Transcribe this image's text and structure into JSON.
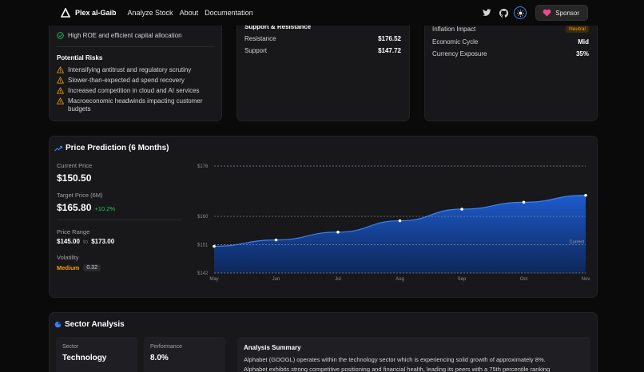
{
  "nav": {
    "brand": "Plex al-Gaib",
    "links": [
      "Analyze Stock",
      "About",
      "Documentation"
    ],
    "sponsor_label": "Sponsor"
  },
  "strengths": {
    "partial_item": "",
    "item": "High ROE and efficient capital allocation"
  },
  "risks": {
    "title": "Potential Risks",
    "items": [
      "Intensifying antitrust and regulatory scrutiny",
      "Slower-than-expected ad spend recovery",
      "Increased competition in cloud and AI services",
      "Macroeconomic headwinds impacting customer",
      "budgets"
    ]
  },
  "support": {
    "title": "Support & Resistance",
    "resistance_label": "Resistance",
    "resistance_value": "$176.52",
    "support_label": "Support",
    "support_value": "$147.72"
  },
  "macro": {
    "inflation_label": "Inflation Impact",
    "inflation_badge": "Neutral",
    "cycle_label": "Economic Cycle",
    "cycle_value": "Mid",
    "currency_label": "Currency Exposure",
    "currency_value": "35%"
  },
  "prediction": {
    "title": "Price Prediction (6 Months)",
    "current_label": "Current Price",
    "current_value": "$150.50",
    "target_label": "Target Price (6M)",
    "target_value": "$165.80",
    "target_change": "+10.2%",
    "range_label": "Price Range",
    "range_low": "$145.00",
    "range_to": "to",
    "range_high": "$173.00",
    "volatility_label": "Volatility",
    "volatility_level": "Medium",
    "volatility_value": "0.32"
  },
  "chart_data": {
    "type": "area",
    "x": [
      "May",
      "Jun",
      "Jul",
      "Aug",
      "Sep",
      "Oct",
      "Nov"
    ],
    "series": [
      {
        "values": [
          150.5,
          152.5,
          155.0,
          158.6,
          162.3,
          164.5,
          166.7
        ]
      }
    ],
    "ylim": [
      142,
      176
    ],
    "y_ticks": [
      "$176",
      "$160",
      "$151",
      "$142"
    ],
    "reference_lines": [
      {
        "value": 176
      },
      {
        "value": 160
      },
      {
        "value": 151,
        "label": "Current"
      },
      {
        "value": 142
      }
    ],
    "colors": {
      "fill": "#1e5fd6",
      "line": "#3b82f6"
    }
  },
  "sector": {
    "title": "Sector Analysis",
    "sector_label": "Sector",
    "sector_value": "Technology",
    "performance_label": "Performance",
    "performance_value": "8.0%",
    "summary_title": "Analysis Summary",
    "summary_line1": "Alphabet (GOOGL) operates within the technology sector which is experiencing solid growth of approximately 8%.",
    "summary_line2": "Alphabet exhibits strong competitive positioning and financial health, leading its peers with a 75th percentile ranking"
  }
}
